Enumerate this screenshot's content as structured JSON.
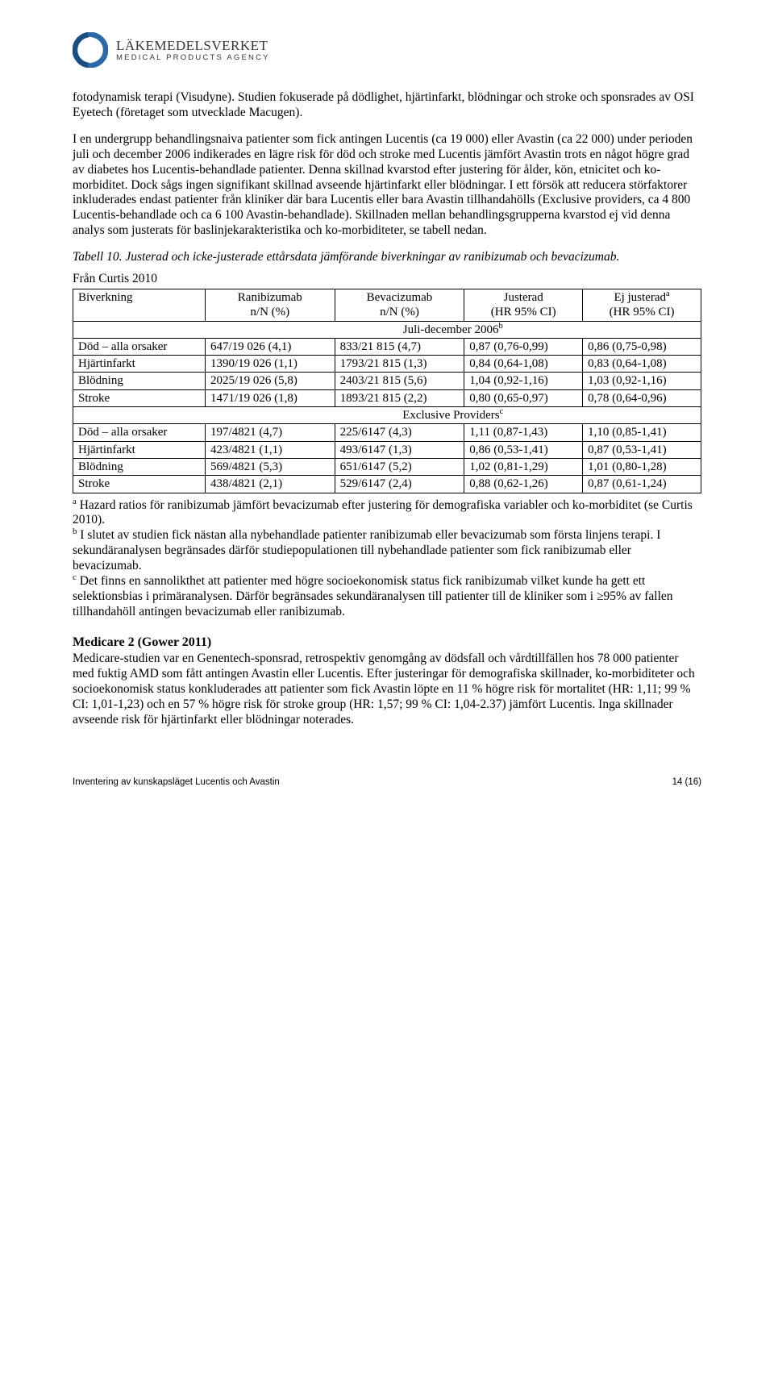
{
  "logo": {
    "title": "LÄKEMEDELSVERKET",
    "subtitle": "MEDICAL PRODUCTS AGENCY",
    "arc_color": "#1b4f84",
    "accent_color": "#2a6aa8"
  },
  "paragraphs": {
    "p1": "fotodynamisk terapi (Visudyne). Studien fokuserade på dödlighet, hjärtinfarkt, blödningar och stroke och sponsrades av OSI Eyetech (företaget som utvecklade Macugen).",
    "p2": "I en undergrupp behandlingsnaiva patienter som fick antingen Lucentis (ca 19 000) eller Avastin (ca 22 000) under perioden juli och december 2006 indikerades en lägre risk för död och stroke med Lucentis jämfört Avastin trots en något högre grad av diabetes hos Lucentis-behandlade patienter. Denna skillnad kvarstod efter justering för ålder, kön, etnicitet och ko-morbiditet. Dock sågs ingen signifikant skillnad avseende hjärtinfarkt eller blödningar. I ett försök att reducera störfaktorer inkluderades endast patienter från kliniker där bara Lucentis eller bara Avastin tillhandahölls (Exclusive providers, ca 4 800 Lucentis-behandlade och ca 6 100 Avastin-behandlade). Skillnaden mellan behandlingsgrupperna kvarstod ej vid denna analys som justerats för baslinjekarakteristika och ko-morbiditeter, se tabell nedan."
  },
  "table_caption": "Tabell 10. Justerad och icke-justerade ettårsdata jämförande biverkningar av ranibizumab och bevacizumab.",
  "table_source": "Från Curtis 2010",
  "table": {
    "headers": {
      "c1": "Biverkning",
      "c2a": "Ranibizumab",
      "c2b": "n/N (%)",
      "c3a": "Bevacizumab",
      "c3b": "n/N (%)",
      "c4a": "Justerad",
      "c4b": "(HR 95% CI)",
      "c5a": "Ej justerad",
      "c5sup": "a",
      "c5b": "(HR 95% CI)"
    },
    "section1_label": "Juli-december 2006",
    "section1_sup": "b",
    "section2_label": "Exclusive Providers",
    "section2_sup": "c",
    "rows1": [
      [
        "Död – alla orsaker",
        "647/19 026 (4,1)",
        "833/21 815 (4,7)",
        "0,87 (0,76-0,99)",
        "0,86 (0,75-0,98)"
      ],
      [
        "Hjärtinfarkt",
        "1390/19 026 (1,1)",
        "1793/21 815 (1,3)",
        "0,84 (0,64-1,08)",
        "0,83 (0,64-1,08)"
      ],
      [
        "Blödning",
        "2025/19 026 (5,8)",
        "2403/21 815 (5,6)",
        "1,04 (0,92-1,16)",
        "1,03 (0,92-1,16)"
      ],
      [
        "Stroke",
        "1471/19 026 (1,8)",
        "1893/21 815 (2,2)",
        "0,80 (0,65-0,97)",
        "0,78 (0,64-0,96)"
      ]
    ],
    "rows2": [
      [
        "Död – alla orsaker",
        "197/4821 (4,7)",
        "225/6147 (4,3)",
        "1,11 (0,87-1,43)",
        "1,10 (0,85-1,41)"
      ],
      [
        "Hjärtinfarkt",
        "423/4821 (1,1)",
        "493/6147 (1,3)",
        "0,86 (0,53-1,41)",
        "0,87 (0,53-1,41)"
      ],
      [
        "Blödning",
        "569/4821 (5,3)",
        "651/6147 (5,2)",
        "1,02 (0,81-1,29)",
        "1,01 (0,80-1,28)"
      ],
      [
        "Stroke",
        "438/4821 (2,1)",
        "529/6147 (2,4)",
        "0,88 (0,62-1,26)",
        "0,87 (0,61-1,24)"
      ]
    ]
  },
  "notes": {
    "a_sup": "a",
    "a": " Hazard ratios för ranibizumab jämfört bevacizumab efter justering för demografiska variabler och ko-morbiditet (se Curtis 2010).",
    "b_sup": "b",
    "b": " I slutet av studien fick nästan alla nybehandlade patienter ranibizumab eller bevacizumab som första linjens terapi. I sekundäranalysen begränsades därför studiepopulationen till nybehandlade patienter som fick ranibizumab eller bevacizumab.",
    "c_sup": "c",
    "c": " Det finns en sannolikthet att patienter med högre socioekonomisk status fick ranibizumab vilket kunde ha gett ett selektionsbias i primäranalysen. Därför begränsades sekundäranalysen till patienter till de kliniker som i ≥95% av fallen tillhandahöll antingen bevacizumab eller ranibizumab."
  },
  "medicare": {
    "heading": "Medicare 2 (Gower 2011)",
    "body": "Medicare-studien var en Genentech-sponsrad, retrospektiv genomgång av dödsfall och vårdtillfällen hos 78 000 patienter med fuktig AMD som fått antingen Avastin eller Lucentis. Efter justeringar för demografiska skillnader, ko-morbiditeter och socioekonomisk status konkluderades att patienter som fick Avastin löpte en 11 % högre risk för mortalitet (HR: 1,11; 99 % CI: 1,01-1,23) och en 57 % högre risk för stroke group (HR: 1,57; 99 % CI: 1,04-2.37) jämfört Lucentis. Inga skillnader avseende risk för hjärtinfarkt eller blödningar noterades."
  },
  "footer": {
    "left": "Inventering av kunskapsläget Lucentis och Avastin",
    "right": "14 (16)"
  }
}
